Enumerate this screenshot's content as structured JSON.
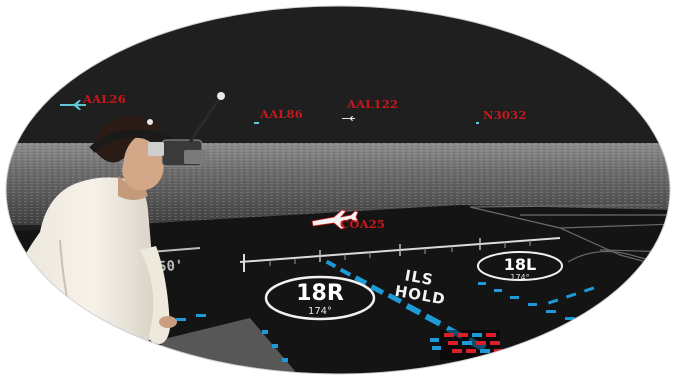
{
  "aircraft_labels": [
    {
      "id": "aal26",
      "callsign": "AAL26"
    },
    {
      "id": "aal86",
      "callsign": "AAL86"
    },
    {
      "id": "aal122",
      "callsign": "AAL122"
    },
    {
      "id": "n3032",
      "callsign": "N3032"
    },
    {
      "id": "coa25",
      "callsign": "COA25"
    }
  ],
  "runways": [
    {
      "id": "18R",
      "label": "18R",
      "heading": "174°"
    },
    {
      "id": "18L",
      "label": "18L",
      "heading": "174°"
    }
  ],
  "ils_hold": {
    "line1": "ILS",
    "line2": "HOLD"
  },
  "side_label": "750'",
  "colors": {
    "sky": "#1f1f1f",
    "ground": "#151515",
    "callsign": "#c8181c",
    "taxi_cyan": "#1e9bd7",
    "hold_red": "#d8202a"
  }
}
